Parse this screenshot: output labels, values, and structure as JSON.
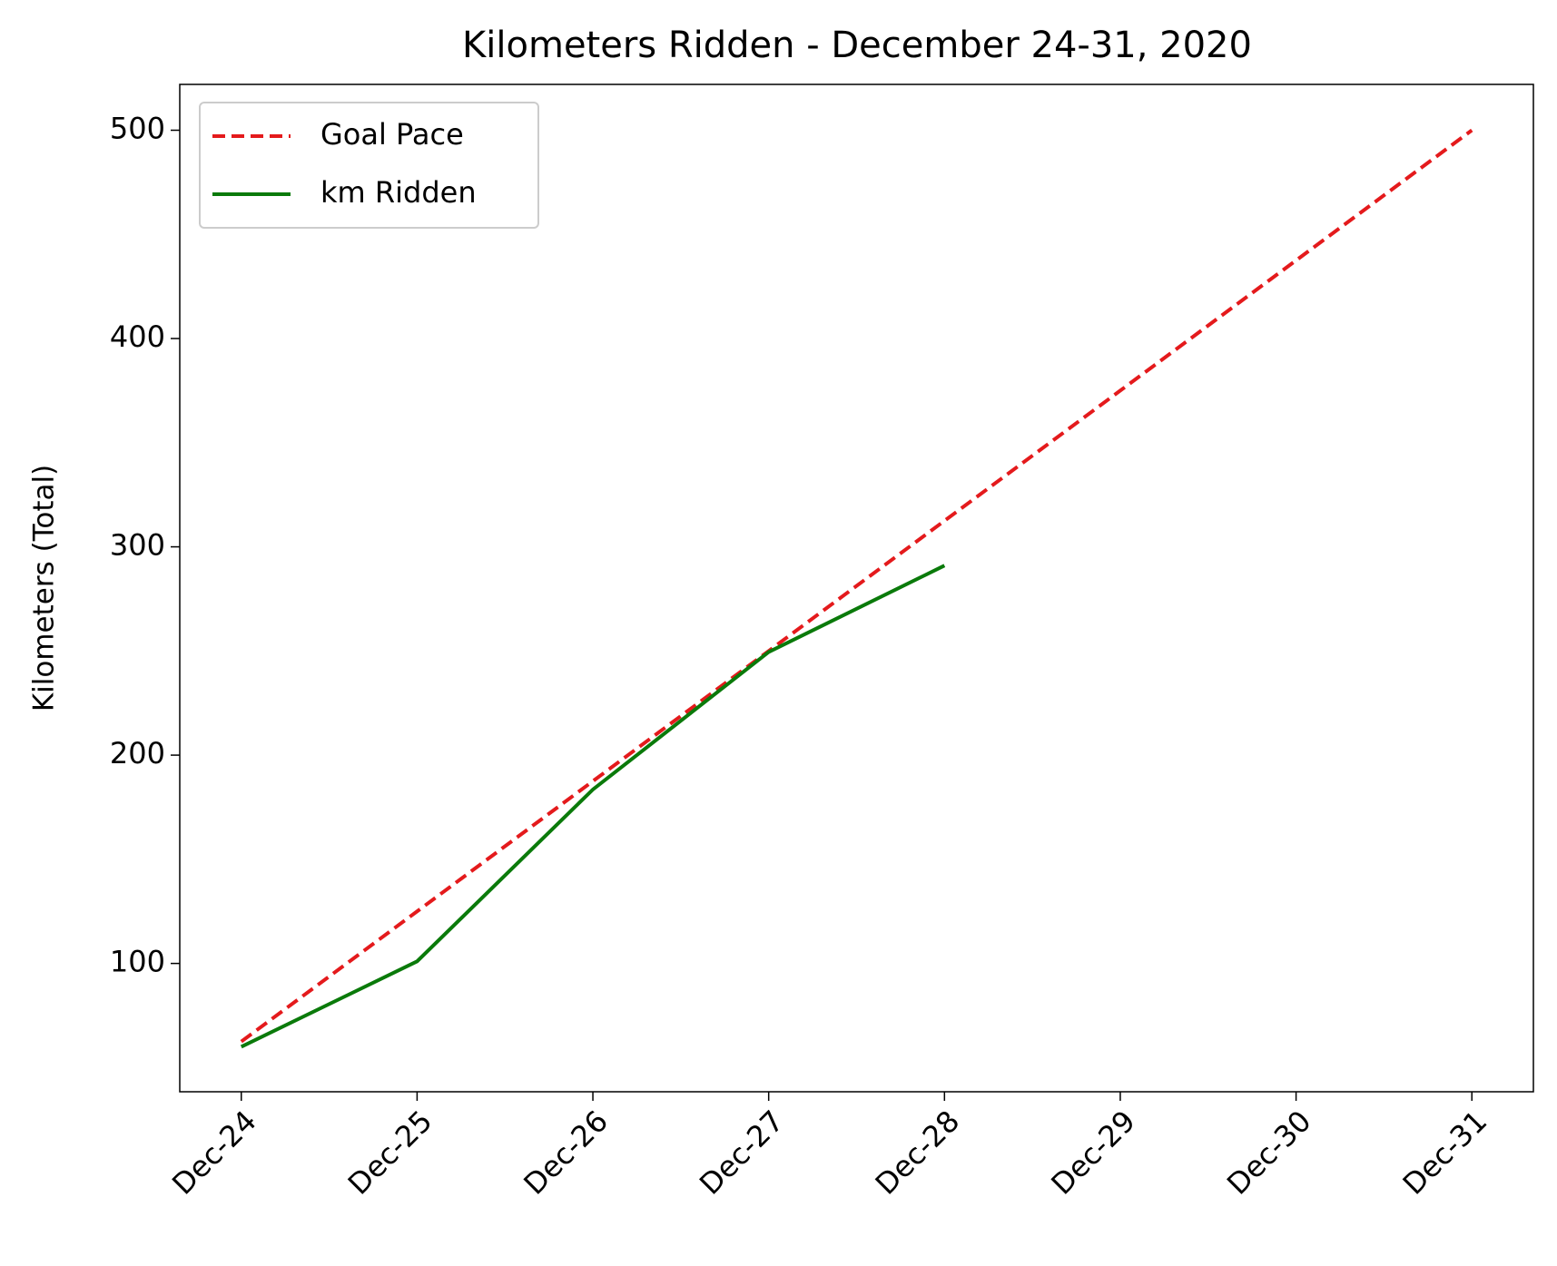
{
  "chart_data": {
    "type": "line",
    "title": "Kilometers Ridden - December 24-31, 2020",
    "ylabel": "Kilometers (Total)",
    "categories": [
      "Dec-24",
      "Dec-25",
      "Dec-26",
      "Dec-27",
      "Dec-28",
      "Dec-29",
      "Dec-30",
      "Dec-31"
    ],
    "series": [
      {
        "name": "Goal Pace",
        "color": "#e41a1c",
        "dashed": true,
        "values": [
          62.5,
          125,
          187.5,
          250,
          312.5,
          375,
          437.5,
          500
        ]
      },
      {
        "name": "km Ridden",
        "color": "#0a7a0a",
        "dashed": false,
        "values": [
          60,
          101,
          183.5,
          249.5,
          291,
          null,
          null,
          null
        ]
      }
    ],
    "ylim": [
      38.4,
      522
    ],
    "yticks": [
      100,
      200,
      300,
      400,
      500
    ],
    "grid": false,
    "legend": "upper left"
  }
}
